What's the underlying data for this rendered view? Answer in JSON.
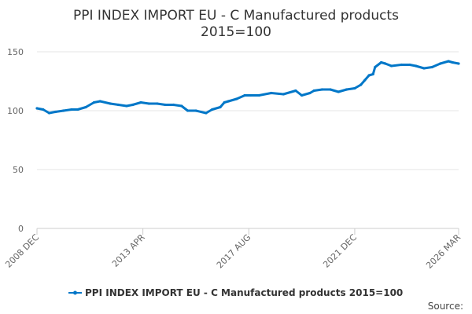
{
  "chart_data": {
    "type": "line",
    "title": "PPI INDEX IMPORT EU - C Manufactured products",
    "subtitle": "2015=100",
    "xlabel": "",
    "ylabel": "",
    "ylim": [
      0,
      165
    ],
    "yticks": [
      0,
      50,
      100,
      150
    ],
    "xticks": [
      {
        "date": "2008-12",
        "label": "2008 DEC"
      },
      {
        "date": "2013-04",
        "label": "2013 APR"
      },
      {
        "date": "2017-08",
        "label": "2017 AUG"
      },
      {
        "date": "2021-12",
        "label": "2021 DEC"
      },
      {
        "date": "2026-03",
        "label": "2026 MAR"
      }
    ],
    "xlim": [
      "2008-12",
      "2026-03"
    ],
    "grid": "horizontal",
    "legend_position": "bottom",
    "color": "#0077c8",
    "series": [
      {
        "name": "PPI INDEX IMPORT EU - C Manufactured products 2015=100",
        "points": [
          [
            "2008-12",
            102
          ],
          [
            "2009-03",
            101
          ],
          [
            "2009-06",
            98
          ],
          [
            "2009-09",
            99
          ],
          [
            "2010-01",
            100
          ],
          [
            "2010-05",
            101
          ],
          [
            "2010-08",
            101
          ],
          [
            "2010-12",
            103
          ],
          [
            "2011-04",
            107
          ],
          [
            "2011-07",
            108
          ],
          [
            "2011-12",
            106
          ],
          [
            "2012-04",
            105
          ],
          [
            "2012-08",
            104
          ],
          [
            "2012-11",
            105
          ],
          [
            "2013-03",
            107
          ],
          [
            "2013-07",
            106
          ],
          [
            "2013-11",
            106
          ],
          [
            "2014-03",
            105
          ],
          [
            "2014-07",
            105
          ],
          [
            "2014-11",
            104
          ],
          [
            "2015-02",
            100
          ],
          [
            "2015-06",
            100
          ],
          [
            "2015-11",
            98
          ],
          [
            "2016-02",
            101
          ],
          [
            "2016-06",
            103
          ],
          [
            "2016-08",
            107
          ],
          [
            "2016-10",
            108
          ],
          [
            "2017-02",
            110
          ],
          [
            "2017-06",
            113
          ],
          [
            "2017-09",
            113
          ],
          [
            "2018-01",
            113
          ],
          [
            "2018-07",
            115
          ],
          [
            "2019-01",
            114
          ],
          [
            "2019-07",
            117
          ],
          [
            "2019-10",
            113
          ],
          [
            "2020-02",
            115
          ],
          [
            "2020-04",
            117
          ],
          [
            "2020-08",
            118
          ],
          [
            "2020-12",
            118
          ],
          [
            "2021-04",
            116
          ],
          [
            "2021-08",
            118
          ],
          [
            "2021-12",
            119
          ],
          [
            "2022-03",
            122
          ],
          [
            "2022-05",
            126
          ],
          [
            "2022-07",
            130
          ],
          [
            "2022-09",
            131
          ],
          [
            "2022-10",
            137
          ],
          [
            "2023-01",
            141
          ],
          [
            "2023-03",
            140
          ],
          [
            "2023-06",
            138
          ],
          [
            "2023-11",
            139
          ],
          [
            "2024-03",
            139
          ],
          [
            "2024-06",
            138
          ],
          [
            "2024-10",
            136
          ],
          [
            "2025-02",
            137
          ],
          [
            "2025-06",
            140
          ],
          [
            "2025-10",
            142
          ],
          [
            "2025-12",
            141
          ],
          [
            "2026-03",
            140
          ]
        ]
      }
    ]
  },
  "source_label": "Source:"
}
